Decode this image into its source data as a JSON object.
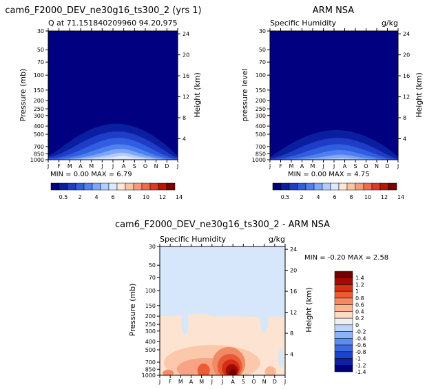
{
  "colors": {
    "abs_scale": [
      "#000080",
      "#0a1fa0",
      "#1f3cc7",
      "#2f5ee0",
      "#4f80f0",
      "#7ea8f7",
      "#b3cdfb",
      "#dde9fd",
      "#fde6d6",
      "#fbc3a6",
      "#f79a79",
      "#ee6b4f",
      "#db3a26",
      "#b81508",
      "#7b0000"
    ],
    "diff_scale": [
      "#00007f",
      "#0d1fa3",
      "#1e42cc",
      "#3a6ae4",
      "#5e8df2",
      "#8fb1f8",
      "#bcd4fc",
      "#f0f0f0",
      "#fddcc7",
      "#fbb794",
      "#f58a62",
      "#ee5a34",
      "#d42f14",
      "#a40a00",
      "#700000"
    ]
  },
  "left_panel": {
    "title": "cam6_F2000_DEV_ne30g16_ts300_2 (yrs 1)",
    "subtitle": "Q at 71.151840209960 94.20,975",
    "minmax": "MIN =    0.00 MAX =    6.79"
  },
  "right_panel": {
    "title": "ARM NSA",
    "subtitle_left": "Specific Humidity",
    "subtitle_right": "g/kg",
    "minmax": "MIN =    0.00 MAX =    4.75"
  },
  "diff_panel": {
    "title": "cam6_F2000_DEV_ne30g16_ts300_2 - ARM NSA",
    "subtitle_left": "Specific Humidity",
    "subtitle_right": "g/kg",
    "minmax": "MIN =   -0.20 MAX =    2.58"
  },
  "axis_labels": {
    "pressure_mb": "Pressure (mb)",
    "pressure_level": "pressure level",
    "height_km": "Height (km)"
  },
  "chart_data": [
    {
      "type": "heatmap",
      "title": "cam6_F2000_DEV_ne30g16_ts300_2 (yrs 1)",
      "x": [
        "J",
        "F",
        "M",
        "A",
        "M",
        "J",
        "J",
        "A",
        "S",
        "O",
        "N",
        "D",
        "J"
      ],
      "ylabel": "Pressure (mb)",
      "y_ticks": [
        30,
        50,
        70,
        100,
        150,
        200,
        250,
        300,
        400,
        500,
        700,
        850,
        1000
      ],
      "y2label": "Height (km)",
      "y2_ticks": [
        4,
        8,
        12,
        16,
        20,
        24
      ],
      "colorbar_labels": [
        "0.5",
        "2",
        "4",
        "6",
        "8",
        "10",
        "12",
        "14"
      ],
      "min": 0.0,
      "max": 6.79
    },
    {
      "type": "heatmap",
      "title": "ARM NSA",
      "x": [
        "J",
        "F",
        "M",
        "A",
        "M",
        "J",
        "J",
        "A",
        "S",
        "O",
        "N",
        "D",
        "J"
      ],
      "ylabel": "pressure level",
      "y_ticks": [
        30,
        50,
        70,
        100,
        150,
        200,
        250,
        300,
        400,
        500,
        700,
        850,
        1000
      ],
      "y2label": "Height (km)",
      "y2_ticks": [
        4,
        8,
        12,
        16,
        20,
        24
      ],
      "colorbar_labels": [
        "0.5",
        "2",
        "4",
        "6",
        "8",
        "10",
        "12",
        "14"
      ],
      "min": 0.0,
      "max": 4.75
    },
    {
      "type": "heatmap",
      "title": "cam6_F2000_DEV_ne30g16_ts300_2 - ARM NSA",
      "x": [
        "J",
        "F",
        "M",
        "A",
        "M",
        "J",
        "J",
        "A",
        "S",
        "O",
        "N",
        "D",
        "J"
      ],
      "ylabel": "Pressure (mb)",
      "y_ticks": [
        30,
        50,
        70,
        100,
        150,
        200,
        250,
        300,
        400,
        500,
        700,
        850,
        1000
      ],
      "y2label": "Height (km)",
      "y2_ticks": [
        4,
        8,
        12,
        16,
        20,
        24
      ],
      "colorbar_labels": [
        "1.4",
        "1.2",
        "1",
        "0.8",
        "0.6",
        "0.4",
        "0.2",
        "0",
        "-0.2",
        "-0.4",
        "-0.6",
        "-0.8",
        "-1",
        "-1.2",
        "-1.4"
      ],
      "min": -0.2,
      "max": 2.58
    }
  ]
}
